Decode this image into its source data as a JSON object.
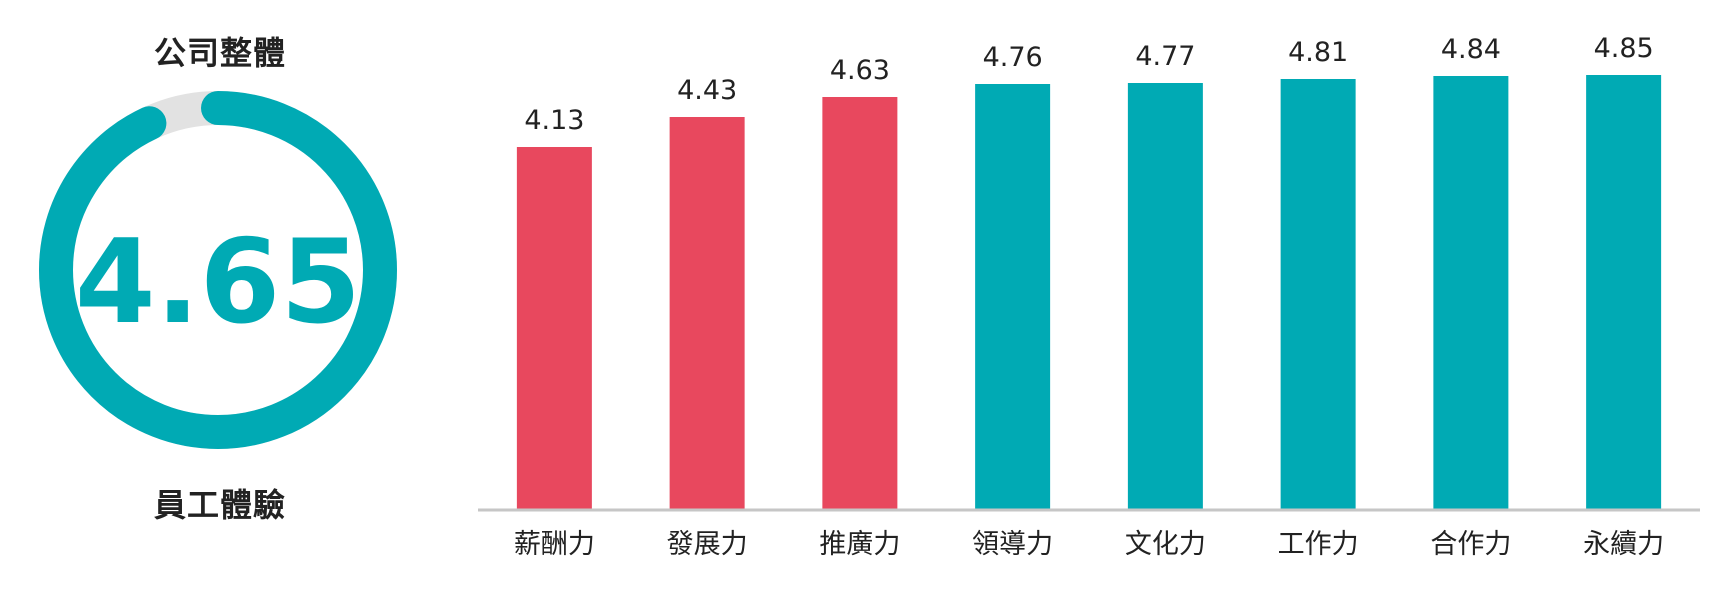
{
  "gauge": {
    "top_title": "公司整體",
    "bottom_title": "員工體驗",
    "value_text": "4.65",
    "value": 4.65,
    "max": 5,
    "color_fill": "#00AAB4",
    "color_track": "#E2E2E2"
  },
  "chart_data": {
    "type": "bar",
    "categories": [
      "薪酬力",
      "發展力",
      "推廣力",
      "領導力",
      "文化力",
      "工作力",
      "合作力",
      "永續力"
    ],
    "values": [
      4.13,
      4.43,
      4.63,
      4.76,
      4.77,
      4.81,
      4.84,
      4.85
    ],
    "value_labels": [
      "4.13",
      "4.43",
      "4.63",
      "4.76",
      "4.77",
      "4.81",
      "4.84",
      "4.85"
    ],
    "bar_colors": [
      "#E8485E",
      "#E8485E",
      "#E8485E",
      "#00AAB4",
      "#00AAB4",
      "#00AAB4",
      "#00AAB4",
      "#00AAB4"
    ],
    "ylim": [
      0.5,
      5
    ],
    "grid": false,
    "axis_color": "#C6C6C6"
  }
}
